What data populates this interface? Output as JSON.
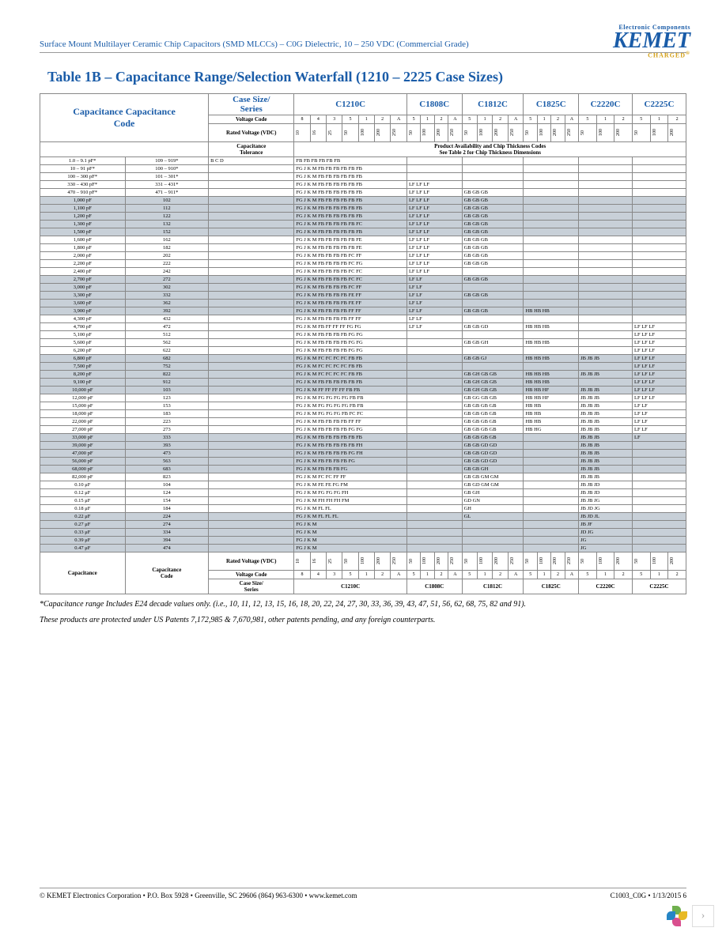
{
  "header": "Surface Mount Multilayer Ceramic Chip Capacitors (SMD MLCCs) – C0G Dielectric, 10 – 250 VDC (Commercial Grade)",
  "logo": {
    "top": "Electronic Components",
    "main": "KEMET",
    "charged": "CHARGED"
  },
  "title": "Table 1B – Capacitance Range/Selection Waterfall (1210 – 2225 Case Sizes)",
  "headers": {
    "case_series": "Case Size/\nSeries",
    "capacitance": "Capacitance",
    "cap_code": "Capacitance\nCode",
    "voltage_code": "Voltage Code",
    "rated_voltage": "Rated Voltage (VDC)",
    "cap_tol": "Capacitance\nTolerance",
    "prod_avail": "Product Availability and Chip Thickness Codes\nSee Table 2 for Chip Thickness Dimensions"
  },
  "series": [
    "C1210C",
    "C1808C",
    "C1812C",
    "C1825C",
    "C2220C",
    "C2225C"
  ],
  "vcodes_1210": [
    "8",
    "4",
    "3",
    "5",
    "1",
    "2",
    "A"
  ],
  "vcodes_1808": [
    "5",
    "1",
    "2",
    "A"
  ],
  "vcodes_1812": [
    "5",
    "1",
    "2",
    "A"
  ],
  "vcodes_1825": [
    "5",
    "1",
    "2",
    "A"
  ],
  "vcodes_2220": [
    "5",
    "1",
    "2"
  ],
  "vcodes_2225": [
    "5",
    "1",
    "2"
  ],
  "volts_1210": [
    "10",
    "16",
    "25",
    "50",
    "100",
    "200",
    "250"
  ],
  "volts_1808": [
    "50",
    "100",
    "200",
    "250"
  ],
  "volts_1812": [
    "50",
    "100",
    "200",
    "250"
  ],
  "volts_1825": [
    "50",
    "100",
    "200",
    "250"
  ],
  "volts_2220": [
    "50",
    "100",
    "200"
  ],
  "volts_2225": [
    "50",
    "100",
    "200"
  ],
  "tol_codes": "B C D",
  "rows": [
    {
      "cap": "1.0 – 9.1 pF*",
      "code": "109 – 919*",
      "c1": "FB FB FB FB FB FB",
      "shaded": false
    },
    {
      "cap": "10 – 91 pF*",
      "code": "100 – 910*",
      "c1": "FG J K M FB FB FB FB FB FB",
      "shaded": false
    },
    {
      "cap": "100 – 300 pF*",
      "code": "101 – 301*",
      "c1": "FG J K M FB FB FB FB FB FB",
      "shaded": false
    },
    {
      "cap": "330 – 430 pF*",
      "code": "331 – 431*",
      "c1": "FG J K M FB FB FB FB FB FB",
      "c2": "LF LF LF",
      "shaded": false
    },
    {
      "cap": "470 – 910 pF*",
      "code": "471 – 911*",
      "c1": "FG J K M FB FB FB FB FB FB",
      "c2": "LF LF LF",
      "c3": "GB GB GB",
      "shaded": false
    },
    {
      "cap": "1,000 pF",
      "code": "102",
      "c1": "FG J K M FB FB FB FB FB FB",
      "c2": "LF LF LF",
      "c3": "GB GB GB",
      "shaded": true
    },
    {
      "cap": "1,100 pF",
      "code": "112",
      "c1": "FG J K M FB FB FB FB FB FB",
      "c2": "LF LF LF",
      "c3": "GB GB GB",
      "shaded": true
    },
    {
      "cap": "1,200 pF",
      "code": "122",
      "c1": "FG J K M FB FB FB FB FB FB",
      "c2": "LF LF LF",
      "c3": "GB GB GB",
      "shaded": true
    },
    {
      "cap": "1,300 pF",
      "code": "132",
      "c1": "FG J K M FB FB FB FB FB FC",
      "c2": "LF LF LF",
      "c3": "GB GB GB",
      "shaded": true
    },
    {
      "cap": "1,500 pF",
      "code": "152",
      "c1": "FG J K M FB FB FB FB FB FB",
      "c2": "LF LF LF",
      "c3": "GB GB GB",
      "shaded": true
    },
    {
      "cap": "1,600 pF",
      "code": "162",
      "c1": "FG J K M FB FB FB FB FB FE",
      "c2": "LF LF LF",
      "c3": "GB GB GB",
      "shaded": false
    },
    {
      "cap": "1,800 pF",
      "code": "182",
      "c1": "FG J K M FB FB FB FB FB FE",
      "c2": "LF LF LF",
      "c3": "GB GB GB",
      "shaded": false
    },
    {
      "cap": "2,000 pF",
      "code": "202",
      "c1": "FG J K M FB FB FB FB FC FF",
      "c2": "LF LF LF",
      "c3": "GB GB GB",
      "shaded": false
    },
    {
      "cap": "2,200 pF",
      "code": "222",
      "c1": "FG J K M FB FB FB FB FC FG",
      "c2": "LF LF LF",
      "c3": "GB GB GB",
      "shaded": false
    },
    {
      "cap": "2,400 pF",
      "code": "242",
      "c1": "FG J K M FB FB FB FB FC FC",
      "c2": "LF LF LF",
      "shaded": false
    },
    {
      "cap": "2,700 pF",
      "code": "272",
      "c1": "FG J K M FB FB FB FB FC FC",
      "c2": "LF LF",
      "c3": "GB GB GB",
      "shaded": true
    },
    {
      "cap": "3,000 pF",
      "code": "302",
      "c1": "FG J K M FB FB FB FB FC FF",
      "c2": "LF LF",
      "shaded": true
    },
    {
      "cap": "3,300 pF",
      "code": "332",
      "c1": "FG J K M FB FB FB FB FE FF",
      "c2": "LF LF",
      "c3": "GB GB GB",
      "shaded": true
    },
    {
      "cap": "3,600 pF",
      "code": "362",
      "c1": "FG J K M FB FB FB FB FE FF",
      "c2": "LF LF",
      "shaded": true
    },
    {
      "cap": "3,900 pF",
      "code": "392",
      "c1": "FG J K M FB FB FB FB FF FF",
      "c2": "LF LF",
      "c3": "GB GB GB",
      "c4": "HB HB HB",
      "shaded": true
    },
    {
      "cap": "4,300 pF",
      "code": "432",
      "c1": "FG J K M FB FB FB FB FF FF",
      "c2": "LF LF",
      "shaded": false
    },
    {
      "cap": "4,700 pF",
      "code": "472",
      "c1": "FG J K M FB FF FF FF FG FG",
      "c2": "LF LF",
      "c3": "GB GB GD",
      "c4": "HB HB HB",
      "c6": "LF LF LF",
      "shaded": false
    },
    {
      "cap": "5,100 pF",
      "code": "512",
      "c1": "FG J K M FB FB FB FB FG FG",
      "c6": "LF LF LF",
      "shaded": false
    },
    {
      "cap": "5,600 pF",
      "code": "562",
      "c1": "FG J K M FB FB FB FB FG FG",
      "c3": "GB GB GH",
      "c4": "HB HB HB",
      "c6": "LF LF LF",
      "shaded": false
    },
    {
      "cap": "6,200 pF",
      "code": "622",
      "c1": "FG J K M FB FB FB FB FG FG",
      "c6": "LF LF LF",
      "shaded": false
    },
    {
      "cap": "6,800 pF",
      "code": "682",
      "c1": "FG J K M FC FC FC FC FB FB",
      "c3": "GB GB GJ",
      "c4": "HB HB HB",
      "c5": "JB JB JB",
      "c6": "LF LF LF",
      "shaded": true
    },
    {
      "cap": "7,500 pF",
      "code": "752",
      "c1": "FG J K M FC FC FC FC FB FB",
      "c6": "LF LF LF",
      "shaded": true
    },
    {
      "cap": "8,200 pF",
      "code": "822",
      "c1": "FG J K M FC FC FC FC FB FB",
      "c3": "GB GH GB GB",
      "c4": "HB HB HB",
      "c5": "JB JB JB",
      "c6": "LF LF LF",
      "shaded": true
    },
    {
      "cap": "9,100 pF",
      "code": "912",
      "c1": "FG J K M FB FB FB FB FB FB",
      "c3": "GB GH GB GB",
      "c4": "HB HB HB",
      "c6": "LF LF LF",
      "shaded": true
    },
    {
      "cap": "10,000 pF",
      "code": "103",
      "c1": "FG J K M FF FF FF FF FB FB",
      "c3": "GB GH GB GB",
      "c4": "HB HB HF",
      "c5": "JB JB JB",
      "c6": "LF LF LF",
      "shaded": true
    },
    {
      "cap": "12,000 pF",
      "code": "123",
      "c1": "FG J K M FG FG FG FG FB FB",
      "c3": "GB GG GB GB",
      "c4": "HB HB HF",
      "c5": "JB JB JB",
      "c6": "LF LF LF",
      "shaded": false
    },
    {
      "cap": "15,000 pF",
      "code": "153",
      "c1": "FG J K M FG FG FG FG FB FB",
      "c3": "GB GB GB GB",
      "c4": "HB HB",
      "c5": "JB JB JB",
      "c6": "LF LF",
      "shaded": false
    },
    {
      "cap": "18,000 pF",
      "code": "183",
      "c1": "FG J K M FG FG FG FB FC FC",
      "c3": "GB GB GB GB",
      "c4": "HB HB",
      "c5": "JB JB JB",
      "c6": "LF LF",
      "shaded": false
    },
    {
      "cap": "22,000 pF",
      "code": "223",
      "c1": "FG J K M FB FB FB FB FF FF",
      "c3": "GB GB GB GB",
      "c4": "HB HB",
      "c5": "JB JB JB",
      "c6": "LF LF",
      "shaded": false
    },
    {
      "cap": "27,000 pF",
      "code": "273",
      "c1": "FG J K M FB FB FB FB FG FG",
      "c3": "GB GB GB GB",
      "c4": "HB HG",
      "c5": "JB JB JB",
      "c6": "LF LF",
      "shaded": false
    },
    {
      "cap": "33,000 pF",
      "code": "333",
      "c1": "FG J K M FB FB FB FB FB FB",
      "c3": "GB GB GB GB",
      "c5": "JB JB JB",
      "c6": "LF",
      "shaded": true
    },
    {
      "cap": "39,000 pF",
      "code": "393",
      "c1": "FG J K M FB FB FB FB FB FH",
      "c3": "GB GB GD GD",
      "c5": "JB JB JB",
      "shaded": true
    },
    {
      "cap": "47,000 pF",
      "code": "473",
      "c1": "FG J K M FB FB FB FB FG FH",
      "c3": "GB GB GD GD",
      "c5": "JB JB JB",
      "shaded": true
    },
    {
      "cap": "56,000 pF",
      "code": "563",
      "c1": "FG J K M FB FB FB FB FG",
      "c3": "GB GB GD GD",
      "c5": "JB JB JB",
      "shaded": true
    },
    {
      "cap": "68,000 pF",
      "code": "683",
      "c1": "FG J K M FB FB FB FG",
      "c3": "GB GB GH",
      "c5": "JB JB JB",
      "shaded": true
    },
    {
      "cap": "82,000 pF",
      "code": "823",
      "c1": "FG J K M FC FC FF FF",
      "c3": "GB GB GM GM",
      "c5": "JB JB JB",
      "shaded": false
    },
    {
      "cap": "0.10 μF",
      "code": "104",
      "c1": "FG J K M FE FE FG FM",
      "c3": "GB GD GM GM",
      "c5": "JB JB JD",
      "shaded": false
    },
    {
      "cap": "0.12 μF",
      "code": "124",
      "c1": "FG J K M FG FG FG FH",
      "c3": "GB GH",
      "c5": "JB JB JD",
      "shaded": false
    },
    {
      "cap": "0.15 μF",
      "code": "154",
      "c1": "FG J K M FH FH FH FM",
      "c3": "GD GN",
      "c5": "JB JB JG",
      "shaded": false
    },
    {
      "cap": "0.18 μF",
      "code": "184",
      "c1": "FG J K M FL FL",
      "c3": "GH",
      "c5": "JB JD JG",
      "shaded": false
    },
    {
      "cap": "0.22 μF",
      "code": "224",
      "c1": "FG J K M FL FL FL",
      "c3": "GL",
      "c5": "JB JD JL",
      "shaded": true
    },
    {
      "cap": "0.27 μF",
      "code": "274",
      "c1": "FG J K M",
      "c5": "JB JF",
      "shaded": true
    },
    {
      "cap": "0.33 μF",
      "code": "334",
      "c1": "FG J K M",
      "c5": "JD JG",
      "shaded": true
    },
    {
      "cap": "0.39 μF",
      "code": "394",
      "c1": "FG J K M",
      "c5": "JG",
      "shaded": true
    },
    {
      "cap": "0.47 μF",
      "code": "474",
      "c1": "FG J K M",
      "c5": "JG",
      "shaded": true
    }
  ],
  "footnote1": "*Capacitance range Includes E24 decade values only. (i.e., 10, 11, 12, 13, 15, 16, 18, 20, 22, 24, 27, 30, 33, 36, 39, 43, 47, 51, 56, 62, 68, 75, 82 and 91).",
  "footnote2": "These products are protected under US Patents 7,172,985 & 7,670,981, other patents pending, and any foreign counterparts.",
  "footer_left": "© KEMET Electronics Corporation • P.O. Box 5928 • Greenville, SC 29606 (864) 963-6300 • www.kemet.com",
  "footer_right": "C1003_C0G • 1/13/2015     6"
}
